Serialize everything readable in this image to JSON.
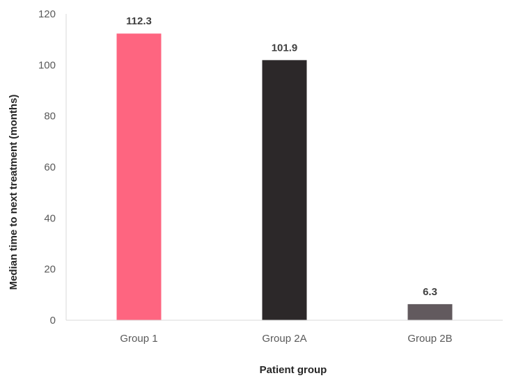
{
  "chart_data": {
    "type": "bar",
    "categories": [
      "Group 1",
      "Group 2A",
      "Group 2B"
    ],
    "values": [
      112.3,
      101.9,
      6.3
    ],
    "data_labels": [
      "112.3",
      "101.9",
      "6.3"
    ],
    "colors": [
      "#fe6580",
      "#2c2829",
      "#625a5e"
    ],
    "title": "",
    "xlabel": "Patient group",
    "ylabel": "Median time to next treatment (months)",
    "ylim": [
      0,
      120
    ],
    "yticks": [
      0,
      20,
      40,
      60,
      80,
      100,
      120
    ],
    "ytick_labels": [
      "0",
      "20",
      "40",
      "60",
      "80",
      "100",
      "120"
    ],
    "grid": false,
    "legend": "none"
  }
}
